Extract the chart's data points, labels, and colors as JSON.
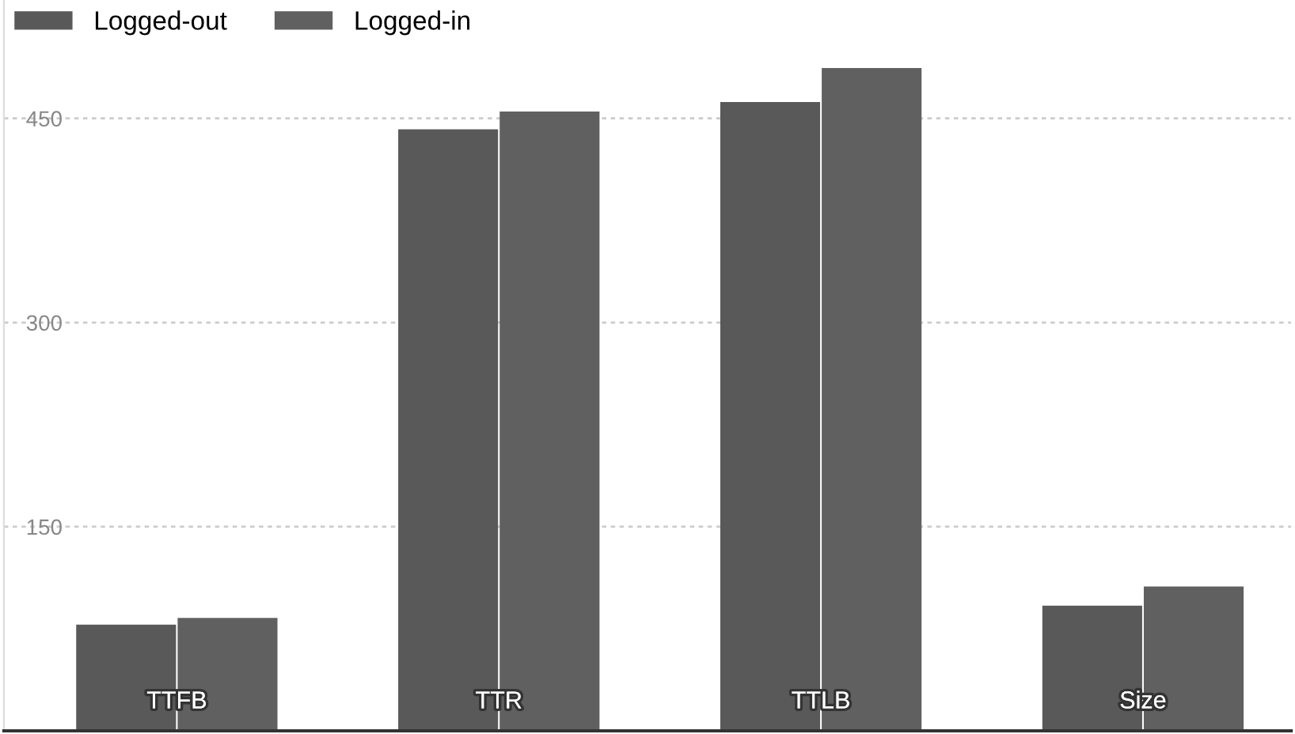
{
  "chart_data": {
    "type": "bar",
    "categories": [
      "TTFB",
      "TTR",
      "TTLB",
      "Size"
    ],
    "series": [
      {
        "name": "Logged-out",
        "color": "#595959",
        "values": [
          78,
          442,
          462,
          92
        ]
      },
      {
        "name": "Logged-in",
        "color": "#606060",
        "values": [
          83,
          455,
          487,
          106
        ]
      }
    ],
    "ylim": [
      0,
      537
    ],
    "yticks": [
      150,
      300,
      450
    ],
    "grid": "y",
    "legend": "top left"
  }
}
